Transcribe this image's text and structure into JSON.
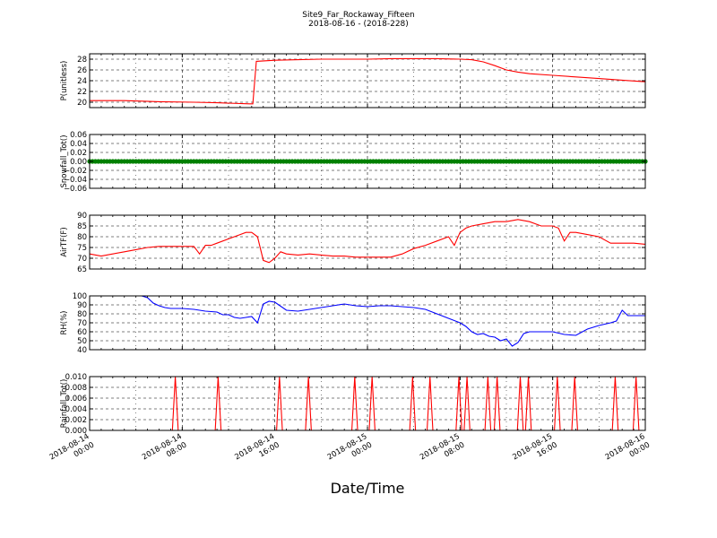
{
  "figure": {
    "title": "Site9_Far_Rockaway_Fifteen",
    "subtitle": "2018-08-16 - (2018-228)",
    "xlabel": "Date/Time",
    "xticks": [
      {
        "value": 0,
        "line1": "2018-08-14",
        "line2": "00:00"
      },
      {
        "value": 8,
        "line1": "2018-08-14",
        "line2": "08:00"
      },
      {
        "value": 16,
        "line1": "2018-08-14",
        "line2": "16:00"
      },
      {
        "value": 24,
        "line1": "2018-08-15",
        "line2": "00:00"
      },
      {
        "value": 32,
        "line1": "2018-08-15",
        "line2": "08:00"
      },
      {
        "value": 40,
        "line1": "2018-08-15",
        "line2": "16:00"
      },
      {
        "value": 48,
        "line1": "2018-08-16",
        "line2": "00:00"
      }
    ]
  },
  "chart_data": [
    {
      "type": "line",
      "ylabel": "P(unitless)",
      "ylim": [
        19,
        29
      ],
      "yticks": [
        20,
        22,
        24,
        26,
        28
      ],
      "xlim": [
        "2018-08-14 00:00",
        "2018-08-16 00:00"
      ],
      "grid": true,
      "color": "#ff0000",
      "series": [
        {
          "x": [
            0,
            3,
            6,
            9,
            11,
            13.8,
            14.1,
            14.4,
            16,
            18,
            20,
            22,
            24,
            26,
            28,
            30,
            32,
            33,
            34,
            35,
            36,
            37,
            38,
            40,
            42,
            44,
            46,
            48
          ],
          "y": [
            20.3,
            20.3,
            20.1,
            20.0,
            19.9,
            19.7,
            19.7,
            27.6,
            27.8,
            27.9,
            28.0,
            28.0,
            28.0,
            28.1,
            28.1,
            28.1,
            28.0,
            27.9,
            27.5,
            26.8,
            26.0,
            25.6,
            25.3,
            25.0,
            24.7,
            24.4,
            24.1,
            23.8
          ]
        }
      ]
    },
    {
      "type": "scatter",
      "ylabel": "Snowfall_Tot()",
      "ylim": [
        -0.06,
        0.06
      ],
      "yticks": [
        0.06,
        0.04,
        0.02,
        0.0,
        -0.02,
        -0.04,
        -0.06
      ],
      "ytick_labels": [
        "0.06",
        "0.04",
        "0.02",
        "0.00",
        "−0.02",
        "−0.04",
        "−0.06"
      ],
      "grid": true,
      "color": "#008000",
      "series": [
        {
          "x_range": [
            0,
            48
          ],
          "constant_y": 0.0
        }
      ]
    },
    {
      "type": "line",
      "ylabel": "AirTF(F)",
      "ylim": [
        65,
        90
      ],
      "yticks": [
        65,
        70,
        75,
        80,
        85,
        90
      ],
      "grid": true,
      "color": "#ff0000",
      "series": [
        {
          "x": [
            0,
            1,
            2,
            3,
            4,
            5,
            6,
            7,
            8,
            9,
            9.5,
            10,
            10.5,
            11,
            12,
            13,
            13.5,
            14,
            14.5,
            15,
            15.5,
            16,
            16.5,
            17,
            18,
            19,
            20,
            21,
            22,
            23,
            24,
            25,
            26,
            27,
            28,
            29,
            30,
            31,
            31.5,
            32,
            32.5,
            33,
            34,
            35,
            36,
            37,
            38,
            39,
            39.5,
            40,
            40.5,
            41,
            41.5,
            42,
            43,
            44,
            45,
            46,
            47,
            48
          ],
          "y": [
            72,
            71,
            72,
            73,
            74,
            75,
            75.5,
            75.5,
            75.5,
            75.5,
            72,
            76,
            76,
            77,
            79,
            81,
            82,
            82,
            80,
            69,
            68,
            70,
            73,
            72,
            71.5,
            72,
            71.5,
            71,
            71,
            70.5,
            70.5,
            70.5,
            70.5,
            72,
            74.5,
            76,
            78,
            80,
            76,
            82,
            84,
            85,
            86,
            87,
            87,
            88,
            87,
            85,
            85,
            85,
            84,
            78,
            82,
            82,
            81,
            80,
            77,
            77,
            77,
            76.5
          ]
        }
      ]
    },
    {
      "type": "line",
      "ylabel": "RH(%)",
      "ylim": [
        40,
        100
      ],
      "yticks": [
        40,
        50,
        60,
        70,
        80,
        90,
        100
      ],
      "grid": true,
      "color": "#0000ff",
      "series": [
        {
          "x": [
            4.5,
            5,
            5.5,
            6,
            6.5,
            7,
            8,
            9,
            10,
            11,
            11.5,
            12,
            12.5,
            13,
            13.5,
            14,
            14.5,
            15,
            15.5,
            16,
            17,
            18,
            19,
            20,
            21,
            22,
            23,
            24,
            25,
            26,
            27,
            28,
            29,
            30,
            31,
            32,
            32.5,
            33,
            33.5,
            34,
            34.5,
            35,
            35.5,
            36,
            36.5,
            37,
            37.5,
            38,
            39,
            40,
            41,
            42,
            43,
            44,
            45,
            45.5,
            46,
            46.5,
            47,
            48
          ],
          "y": [
            100,
            98,
            92,
            89,
            87,
            86,
            86,
            85,
            83,
            82,
            79,
            79,
            76,
            75,
            76,
            77,
            70,
            91,
            94,
            93,
            84,
            83,
            85,
            87,
            89,
            91,
            89,
            88,
            89,
            89,
            88,
            87,
            85,
            80,
            75,
            70,
            66,
            60,
            57,
            58,
            55,
            54,
            50,
            52,
            44,
            48,
            58,
            60,
            60,
            60,
            57,
            56,
            63,
            67,
            70,
            72,
            84,
            78,
            78,
            78
          ]
        }
      ]
    },
    {
      "type": "line",
      "ylabel": "Rainfall_Tot()",
      "ylim": [
        0,
        0.01
      ],
      "yticks": [
        0.0,
        0.002,
        0.004,
        0.006,
        0.008,
        0.01
      ],
      "ytick_labels": [
        "0.000",
        "0.002",
        "0.004",
        "0.006",
        "0.008",
        "0.010"
      ],
      "grid": true,
      "color": "#ff0000",
      "spikes_at_hours": [
        7.4,
        11.1,
        16.4,
        18.9,
        22.9,
        24.4,
        27.9,
        29.4,
        31.9,
        32.6,
        34.4,
        35.2,
        37.2,
        37.9,
        40.4,
        41.9,
        45.4,
        47.2
      ],
      "spike_value": 0.01
    }
  ]
}
